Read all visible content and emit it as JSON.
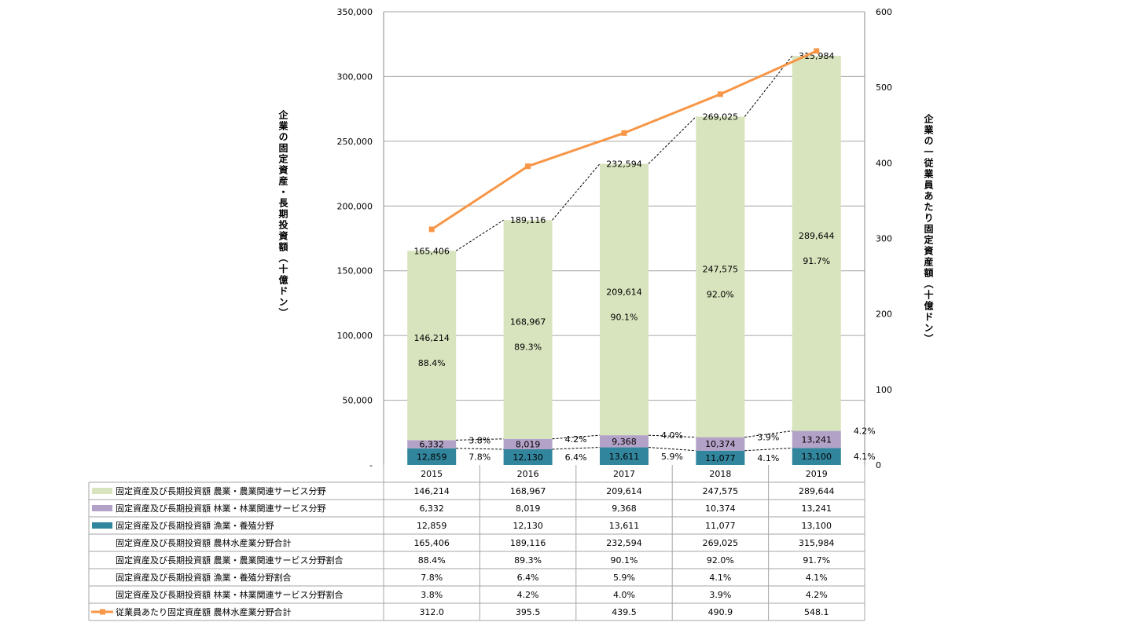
{
  "chart_data": {
    "type": "bar",
    "stacked": true,
    "categories": [
      "2015",
      "2016",
      "2017",
      "2018",
      "2019"
    ],
    "ylabel": "企業の固定資産・長期投資額（十億ドン）",
    "y2label": "企業の一従業員あたり固定資産額（十億ドン）",
    "ylim": [
      0,
      350000
    ],
    "y2lim": [
      0,
      600
    ],
    "yticks": [
      "-",
      "50,000",
      "100,000",
      "150,000",
      "200,000",
      "250,000",
      "300,000",
      "350,000"
    ],
    "y2ticks": [
      "0",
      "100",
      "200",
      "300",
      "400",
      "500",
      "600"
    ],
    "grid": true,
    "legend": "data-table-bottom",
    "series": [
      {
        "name": "固定資産及び長期投資額 農業・農業関連サービス分野",
        "type": "bar",
        "color": "#d7e4bd",
        "values": [
          146214,
          168967,
          209614,
          247575,
          289644
        ],
        "labels": [
          "146,214",
          "168,967",
          "209,614",
          "247,575",
          "289,644"
        ]
      },
      {
        "name": "固定資産及び長期投資額 林業・林業関連サービス分野",
        "type": "bar",
        "color": "#b3a2c7",
        "values": [
          6332,
          8019,
          9368,
          10374,
          13241
        ],
        "labels": [
          "6,332",
          "8,019",
          "9,368",
          "10,374",
          "13,241"
        ]
      },
      {
        "name": "固定資産及び長期投資額 漁業・養殖分野",
        "type": "bar",
        "color": "#31859c",
        "values": [
          12859,
          12130,
          13611,
          11077,
          13100
        ],
        "labels": [
          "12,859",
          "12,130",
          "13,611",
          "11,077",
          "13,100"
        ]
      },
      {
        "name": "固定資産及び長期投資額 農林水産業分野合計",
        "type": "none",
        "values": [
          165406,
          189116,
          232594,
          269025,
          315984
        ],
        "labels": [
          "165,406",
          "189,116",
          "232,594",
          "269,025",
          "315,984"
        ]
      },
      {
        "name": "固定資産及び長期投資額 農業・農業関連サービス分野割合",
        "type": "none",
        "values": [
          88.4,
          89.3,
          90.1,
          92.0,
          91.7
        ],
        "labels": [
          "88.4%",
          "89.3%",
          "90.1%",
          "92.0%",
          "91.7%"
        ]
      },
      {
        "name": "固定資産及び長期投資額 漁業・養殖分野割合",
        "type": "none",
        "values": [
          7.8,
          6.4,
          5.9,
          4.1,
          4.1
        ],
        "labels": [
          "7.8%",
          "6.4%",
          "5.9%",
          "4.1%",
          "4.1%"
        ]
      },
      {
        "name": "固定資産及び長期投資額 林業・林業関連サービス分野割合",
        "type": "none",
        "values": [
          3.8,
          4.2,
          4.0,
          3.9,
          4.2
        ],
        "labels": [
          "3.8%",
          "4.2%",
          "4.0%",
          "3.9%",
          "4.2%"
        ]
      },
      {
        "name": "従業員あたり固定資産額 農林水産業分野合計",
        "type": "line",
        "axis": "right",
        "color": "#f79646",
        "values": [
          312.0,
          395.5,
          439.5,
          490.9,
          548.1
        ],
        "labels": [
          "312.0",
          "395.5",
          "439.5",
          "490.9",
          "548.1"
        ]
      }
    ]
  }
}
